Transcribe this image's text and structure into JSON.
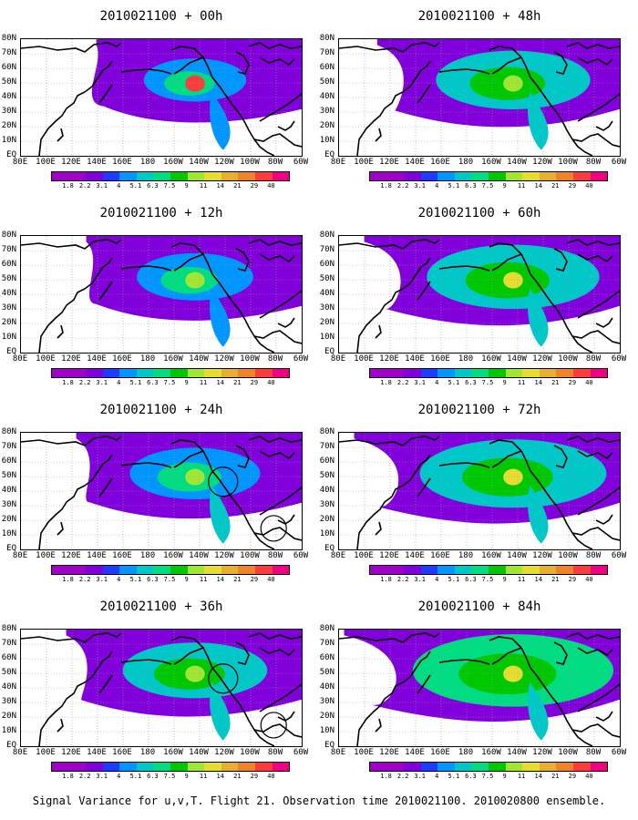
{
  "panels": [
    {
      "title": "2010021100 + 00h",
      "intensity": 0.25,
      "has_circles": false
    },
    {
      "title": "2010021100 + 12h",
      "intensity": 0.35,
      "has_circles": false
    },
    {
      "title": "2010021100 + 24h",
      "intensity": 0.45,
      "has_circles": true
    },
    {
      "title": "2010021100 + 36h",
      "intensity": 0.55,
      "has_circles": true
    },
    {
      "title": "2010021100 + 48h",
      "intensity": 0.62,
      "has_circles": false
    },
    {
      "title": "2010021100 + 60h",
      "intensity": 0.75,
      "has_circles": false
    },
    {
      "title": "2010021100 + 72h",
      "intensity": 0.85,
      "has_circles": false
    },
    {
      "title": "2010021100 + 84h",
      "intensity": 0.95,
      "has_circles": false
    }
  ],
  "latitude_labels": [
    "80N",
    "70N",
    "60N",
    "50N",
    "40N",
    "30N",
    "20N",
    "10N",
    "EQ"
  ],
  "longitude_labels": [
    "80E",
    "100E",
    "120E",
    "140E",
    "160E",
    "180",
    "160W",
    "140W",
    "120W",
    "100W",
    "80W",
    "60W"
  ],
  "colorbar": {
    "labels": [
      "1.8",
      "2.2",
      "3.1",
      "4",
      "5.1",
      "6.3",
      "7.5",
      "9",
      "11",
      "14",
      "21",
      "29",
      "40"
    ],
    "colors": [
      "#a000c8",
      "#8200dc",
      "#1e3cff",
      "#0096ff",
      "#00c8c8",
      "#00dc82",
      "#00c800",
      "#a0e632",
      "#e6dc32",
      "#e6af2d",
      "#f08228",
      "#fa3c3c",
      "#f00082"
    ]
  },
  "caption": "Signal Variance for u,v,T. Flight 21. Observation time 2010021100. 2010020800 ensemble."
}
